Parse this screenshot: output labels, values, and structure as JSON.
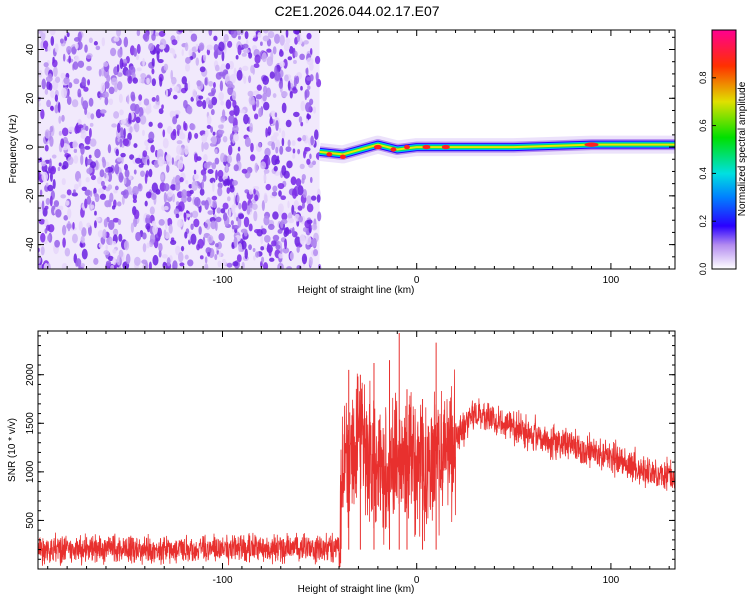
{
  "title": "C2E1.2026.044.02.17.E07",
  "colors": {
    "signal": "#e8302e",
    "noise": "#7b2be8",
    "axis": "#000000"
  },
  "chart_data": [
    {
      "type": "heatmap",
      "name": "spectrogram",
      "xlabel": "Height of straight line (km)",
      "ylabel": "Frequency (Hz)",
      "xlim": [
        -195,
        133
      ],
      "ylim": [
        -50,
        48
      ],
      "xticks": [
        -100,
        0,
        100
      ],
      "xtick_labels": [
        "-100",
        "0",
        "100"
      ],
      "yticks": [
        -40,
        -20,
        0,
        20,
        40
      ],
      "ytick_labels": [
        "-40",
        "-20",
        "0",
        "20",
        "40"
      ],
      "noise_region_x": [
        -195,
        -50
      ],
      "signal_band_center_hz": 0,
      "signal_track": [
        {
          "x": -50,
          "y": -2
        },
        {
          "x": -38,
          "y": -3
        },
        {
          "x": -20,
          "y": 1
        },
        {
          "x": -10,
          "y": -1
        },
        {
          "x": 0,
          "y": 0
        },
        {
          "x": 50,
          "y": 0
        },
        {
          "x": 90,
          "y": 1
        },
        {
          "x": 110,
          "y": 1
        },
        {
          "x": 133,
          "y": 1
        }
      ],
      "colorbar": {
        "label": "Normalized spectral amplitude",
        "range": [
          0,
          1
        ],
        "ticks": [
          0.0,
          0.2,
          0.4,
          0.6,
          0.8
        ],
        "tick_labels": [
          "0.0",
          "0.2",
          "0.4",
          "0.6",
          "0.8"
        ]
      }
    },
    {
      "type": "line",
      "name": "snr",
      "xlabel": "Height of straight line (km)",
      "ylabel": "SNR (10 * v/v)",
      "xlim": [
        -195,
        133
      ],
      "ylim": [
        0,
        2450
      ],
      "xticks": [
        -100,
        0,
        100
      ],
      "xtick_labels": [
        "-100",
        "0",
        "100"
      ],
      "yticks": [
        500,
        1000,
        1500,
        2000
      ],
      "ytick_labels": [
        "500",
        "1000",
        "1500",
        "2000"
      ],
      "series": [
        {
          "name": "SNR",
          "points": [
            {
              "x": -195,
              "y": 200
            },
            {
              "x": -150,
              "y": 200
            },
            {
              "x": -100,
              "y": 210
            },
            {
              "x": -60,
              "y": 205
            },
            {
              "x": -40,
              "y": 220
            },
            {
              "x": -38,
              "y": 1000
            },
            {
              "x": -30,
              "y": 1300
            },
            {
              "x": -20,
              "y": 1000
            },
            {
              "x": -10,
              "y": 1100
            },
            {
              "x": 0,
              "y": 1100
            },
            {
              "x": 10,
              "y": 1100
            },
            {
              "x": 20,
              "y": 1350
            },
            {
              "x": 30,
              "y": 1600
            },
            {
              "x": 40,
              "y": 1550
            },
            {
              "x": 60,
              "y": 1400
            },
            {
              "x": 80,
              "y": 1250
            },
            {
              "x": 100,
              "y": 1150
            },
            {
              "x": 120,
              "y": 1000
            },
            {
              "x": 133,
              "y": 950
            }
          ],
          "spikes": [
            {
              "x": -35,
              "y": 2050
            },
            {
              "x": -29,
              "y": 2000
            },
            {
              "x": -22,
              "y": 2120
            },
            {
              "x": -14,
              "y": 2150
            },
            {
              "x": -9,
              "y": 2430
            },
            {
              "x": 10,
              "y": 2330
            },
            {
              "x": -5,
              "y": 1850
            },
            {
              "x": 3,
              "y": 1750
            }
          ]
        }
      ]
    }
  ]
}
